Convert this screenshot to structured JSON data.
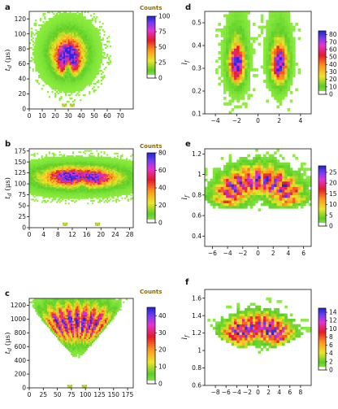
{
  "chart_data": [
    {
      "panel": "a",
      "type": "heatmap",
      "ylabel": "t_d (μs)",
      "xlim": [
        0,
        80
      ],
      "ylim": [
        0,
        130
      ],
      "xticks": [
        0,
        10,
        20,
        30,
        40,
        50,
        60,
        70
      ],
      "yticks": [
        0,
        20,
        40,
        60,
        80,
        100,
        120
      ],
      "colorbar": {
        "title": "Counts",
        "ticks": [
          0,
          25,
          50,
          75,
          100
        ],
        "max": 100
      },
      "blobs": [
        {
          "x": 30,
          "y": 75,
          "sx": 9,
          "sy": 18,
          "amp": 55
        },
        {
          "x": 26,
          "y": 62,
          "sx": 3.5,
          "sy": 10,
          "amp": 45
        },
        {
          "x": 34,
          "y": 62,
          "sx": 3.5,
          "sy": 10,
          "amp": 45
        },
        {
          "x": 30,
          "y": 78,
          "sx": 6,
          "sy": 8,
          "amp": 20
        }
      ],
      "notch": {
        "x": 30,
        "y": 50,
        "sx": 2,
        "sy": 10,
        "depth": 0.85
      },
      "spots": [
        {
          "x": 27,
          "y": 5
        },
        {
          "x": 33,
          "y": 5
        }
      ]
    },
    {
      "panel": "b",
      "type": "heatmap",
      "ylabel": "t_d (μs)",
      "xlim": [
        0,
        29
      ],
      "ylim": [
        0,
        180
      ],
      "xticks": [
        0,
        4,
        8,
        12,
        16,
        20,
        24,
        28
      ],
      "yticks": [
        0,
        25,
        50,
        75,
        100,
        125,
        150,
        175
      ],
      "colorbar": {
        "title": "Counts",
        "ticks": [
          0,
          20,
          40,
          60,
          80
        ],
        "max": 80
      },
      "blobs": [
        {
          "x": 14,
          "y": 115,
          "sx": 8,
          "sy": 17,
          "amp": 42
        },
        {
          "x": 10.5,
          "y": 118,
          "sx": 3,
          "sy": 11,
          "amp": 32
        },
        {
          "x": 18.5,
          "y": 115,
          "sx": 3,
          "sy": 11,
          "amp": 28
        }
      ],
      "notch": {
        "x": 14.5,
        "y": 95,
        "sx": 1.2,
        "sy": 12,
        "depth": 0.5
      },
      "spots": [
        {
          "x": 10,
          "y": 8
        },
        {
          "x": 19,
          "y": 8
        }
      ]
    },
    {
      "panel": "c",
      "type": "heatmap",
      "ylabel": "t_d (μs)",
      "xlim": [
        0,
        185
      ],
      "ylim": [
        0,
        1300
      ],
      "xticks": [
        0,
        25,
        50,
        75,
        100,
        125,
        150,
        175
      ],
      "yticks": [
        0,
        200,
        400,
        600,
        800,
        1000,
        1200
      ],
      "colorbar": {
        "title": "Counts",
        "ticks": [
          0,
          10,
          20,
          30,
          40
        ],
        "max": 45
      },
      "fan": {
        "x0": 85,
        "y0": 380,
        "r": 800,
        "half_angle": 0.55,
        "rays": 8,
        "amp": 30
      },
      "spots": [
        {
          "x": 72,
          "y": 20
        },
        {
          "x": 98,
          "y": 20
        }
      ]
    },
    {
      "panel": "d",
      "type": "heatmap",
      "ylabel": "l_f",
      "xlim": [
        -5,
        5
      ],
      "ylim": [
        0.1,
        0.55
      ],
      "xticks": [
        -4,
        -2,
        0,
        2,
        4
      ],
      "yticks": [
        0.1,
        0.2,
        0.3,
        0.4,
        0.5
      ],
      "colorbar": {
        "title": "",
        "ticks": [
          0,
          10,
          20,
          30,
          40,
          50,
          60,
          70,
          80
        ],
        "max": 85
      },
      "blobs": [
        {
          "x": -2,
          "y": 0.32,
          "sx": 0.45,
          "sy": 0.05,
          "amp": 70
        },
        {
          "x": 2,
          "y": 0.32,
          "sx": 0.45,
          "sy": 0.05,
          "amp": 70
        },
        {
          "x": -2,
          "y": 0.38,
          "sx": 0.6,
          "sy": 0.09,
          "amp": 15
        },
        {
          "x": 2,
          "y": 0.38,
          "sx": 0.6,
          "sy": 0.09,
          "amp": 15
        }
      ]
    },
    {
      "panel": "e",
      "type": "heatmap",
      "ylabel": "l_f",
      "xlim": [
        -7,
        7
      ],
      "ylim": [
        0.3,
        1.25
      ],
      "xticks": [
        -6,
        -4,
        -2,
        0,
        2,
        4,
        6
      ],
      "yticks": [
        0.4,
        0.6,
        0.8,
        1.0,
        1.2
      ],
      "colorbar": {
        "title": "",
        "ticks": [
          0,
          5,
          10,
          15,
          20,
          25
        ],
        "max": 28
      },
      "fan": {
        "x0": 0,
        "y0": 0.65,
        "r": 0.42,
        "half_angle": 1.3,
        "rays": 10,
        "amp": 17
      }
    },
    {
      "panel": "f",
      "type": "heatmap",
      "ylabel": "l_f",
      "xlim": [
        -10,
        10
      ],
      "ylim": [
        0.6,
        1.7
      ],
      "xticks": [
        -8,
        -6,
        -4,
        -2,
        0,
        2,
        4,
        6,
        8
      ],
      "yticks": [
        0.6,
        0.8,
        1.0,
        1.2,
        1.4,
        1.6
      ],
      "colorbar": {
        "title": "",
        "ticks": [
          0,
          2,
          4,
          6,
          8,
          10,
          12,
          14
        ],
        "max": 15
      },
      "fan": {
        "x0": 0,
        "y0": 0.95,
        "r": 0.45,
        "half_angle": 1.0,
        "rays": 11,
        "amp": 10
      }
    }
  ]
}
